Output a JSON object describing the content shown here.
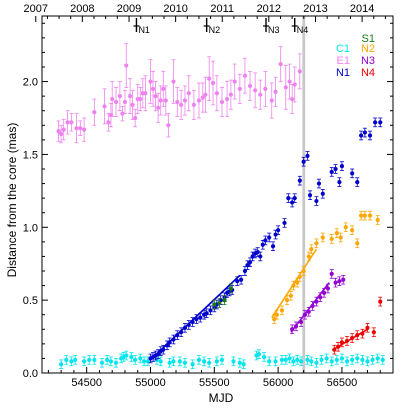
{
  "chart_data": {
    "type": "scatter",
    "xlabel": "MJD",
    "ylabel": "Distance from the core (mas)",
    "xlim": [
      54150,
      56900
    ],
    "ylim": [
      0.0,
      2.45
    ],
    "x_ticks": [
      "54500",
      "55000",
      "55500",
      "56000",
      "56500"
    ],
    "x_tick_values": [
      54500,
      55000,
      55500,
      56000,
      56500
    ],
    "y_ticks": [
      "0.0",
      "0.5",
      "1.0",
      "1.5",
      "2.0"
    ],
    "y_tick_values": [
      0.0,
      0.5,
      1.0,
      1.5,
      2.0
    ],
    "top_axis_ticks": [
      "2007",
      "2008",
      "2009",
      "2010",
      "2011",
      "2012",
      "2013",
      "2014"
    ],
    "top_axis_values": [
      54101,
      54466,
      54832,
      55197,
      55562,
      55927,
      56293,
      56658
    ],
    "grid": false,
    "shaded_band": {
      "x": [
        56190,
        56212
      ],
      "color": "#c8c8c8"
    },
    "markers": [
      {
        "label": "N1",
        "x": 54890
      },
      {
        "label": "N2",
        "x": 55440
      },
      {
        "label": "N3",
        "x": 55905
      },
      {
        "label": "N4",
        "x": 56130
      }
    ],
    "legend": {
      "placement": "top-right",
      "entries": [
        {
          "label": "S1",
          "color": "#1a7a1a"
        },
        {
          "label": "C1",
          "color": "#00e5ee"
        },
        {
          "label": "N2",
          "color": "#ffa500"
        },
        {
          "label": "E1",
          "color": "#ee82ee"
        },
        {
          "label": "N3",
          "color": "#9400d3"
        },
        {
          "label": "N1",
          "color": "#0000cd"
        },
        {
          "label": "N4",
          "color": "#ee0000"
        }
      ]
    },
    "series": [
      {
        "name": "E1",
        "color": "#ee82ee",
        "points": [
          [
            54280,
            1.66,
            0.07
          ],
          [
            54300,
            1.64,
            0.06
          ],
          [
            54320,
            1.67,
            0.07
          ],
          [
            54350,
            1.72,
            0.08
          ],
          [
            54380,
            1.72,
            0.06
          ],
          [
            54420,
            1.68,
            0.1
          ],
          [
            54450,
            1.68,
            0.05
          ],
          [
            54480,
            1.67,
            0.08
          ],
          [
            54560,
            1.79,
            0.09
          ],
          [
            54640,
            1.83,
            0.12
          ],
          [
            54670,
            1.72,
            0.06
          ],
          [
            54690,
            1.77,
            0.08
          ],
          [
            54700,
            1.88,
            0.12
          ],
          [
            54730,
            1.86,
            0.1
          ],
          [
            54760,
            1.9,
            0.1
          ],
          [
            54780,
            1.78,
            0.05
          ],
          [
            54800,
            1.86,
            0.08
          ],
          [
            54810,
            2.11,
            0.15
          ],
          [
            54840,
            1.9,
            0.12
          ],
          [
            54860,
            1.84,
            0.1
          ],
          [
            54880,
            1.75,
            0.06
          ],
          [
            54900,
            1.88,
            0.1
          ],
          [
            54920,
            1.88,
            0.08
          ],
          [
            54940,
            1.92,
            0.1
          ],
          [
            54960,
            1.92,
            0.12
          ],
          [
            55000,
            2.0,
            0.15
          ],
          [
            55020,
            1.95,
            0.12
          ],
          [
            55040,
            1.9,
            0.1
          ],
          [
            55060,
            1.82,
            0.1
          ],
          [
            55080,
            1.87,
            0.1
          ],
          [
            55100,
            1.95,
            0.12
          ],
          [
            55120,
            1.87,
            0.1
          ],
          [
            55140,
            1.7,
            0.08
          ],
          [
            55180,
            2.0,
            0.15
          ],
          [
            55210,
            1.86,
            0.1
          ],
          [
            55240,
            1.84,
            0.1
          ],
          [
            55270,
            1.87,
            0.1
          ],
          [
            55300,
            1.92,
            0.12
          ],
          [
            55340,
            1.84,
            0.1
          ],
          [
            55380,
            1.87,
            0.12
          ],
          [
            55410,
            1.89,
            0.1
          ],
          [
            55430,
            1.91,
            0.12
          ],
          [
            55460,
            2.02,
            0.15
          ],
          [
            55490,
            1.99,
            0.15
          ],
          [
            55520,
            1.92,
            0.12
          ],
          [
            55560,
            1.86,
            0.1
          ],
          [
            55600,
            1.88,
            0.12
          ],
          [
            55630,
            1.91,
            0.1
          ],
          [
            55660,
            2.0,
            0.12
          ],
          [
            55700,
            1.95,
            0.1
          ],
          [
            55740,
            2.04,
            0.12
          ],
          [
            55780,
            1.97,
            0.1
          ],
          [
            55820,
            1.94,
            0.12
          ],
          [
            55860,
            1.91,
            0.1
          ],
          [
            55900,
            1.95,
            0.12
          ],
          [
            55950,
            1.87,
            0.12
          ],
          [
            55980,
            1.93,
            0.1
          ],
          [
            56020,
            2.12,
            0.12
          ],
          [
            56060,
            1.96,
            0.15
          ],
          [
            56090,
            2.0,
            0.12
          ],
          [
            56110,
            1.88,
            0.1
          ],
          [
            56130,
            1.98,
            0.12
          ],
          [
            56170,
            2.07,
            0.12
          ]
        ]
      },
      {
        "name": "C1",
        "color": "#00e5ee",
        "points": [
          [
            54300,
            0.06
          ],
          [
            54340,
            0.09
          ],
          [
            54380,
            0.08
          ],
          [
            54410,
            0.09
          ],
          [
            54480,
            0.08
          ],
          [
            54520,
            0.09
          ],
          [
            54560,
            0.09
          ],
          [
            54620,
            0.07
          ],
          [
            54660,
            0.09
          ],
          [
            54690,
            0.08
          ],
          [
            54730,
            0.07
          ],
          [
            54770,
            0.1
          ],
          [
            54790,
            0.11
          ],
          [
            54810,
            0.12
          ],
          [
            54850,
            0.11
          ],
          [
            54880,
            0.09
          ],
          [
            54920,
            0.1
          ],
          [
            54950,
            0.08
          ],
          [
            54980,
            0.08
          ],
          [
            55050,
            0.09
          ],
          [
            55080,
            0.08
          ],
          [
            55150,
            0.07
          ],
          [
            55180,
            0.08
          ],
          [
            55230,
            0.08
          ],
          [
            55270,
            0.07
          ],
          [
            55330,
            0.06
          ],
          [
            55380,
            0.09
          ],
          [
            55420,
            0.08
          ],
          [
            55460,
            0.07
          ],
          [
            55520,
            0.08
          ],
          [
            55560,
            0.09
          ],
          [
            55650,
            0.08
          ],
          [
            55700,
            0.07
          ],
          [
            55730,
            0.06
          ],
          [
            55830,
            0.12
          ],
          [
            55850,
            0.13
          ],
          [
            55890,
            0.11
          ],
          [
            55930,
            0.08
          ],
          [
            55980,
            0.08
          ],
          [
            56030,
            0.09
          ],
          [
            56060,
            0.09
          ],
          [
            56090,
            0.1
          ],
          [
            56120,
            0.08
          ],
          [
            56150,
            0.09
          ],
          [
            56180,
            0.08
          ],
          [
            56230,
            0.09
          ],
          [
            56260,
            0.08
          ],
          [
            56300,
            0.07
          ],
          [
            56340,
            0.09
          ],
          [
            56380,
            0.1
          ],
          [
            56420,
            0.08
          ],
          [
            56460,
            0.09
          ],
          [
            56500,
            0.1
          ],
          [
            56540,
            0.08
          ],
          [
            56580,
            0.09
          ],
          [
            56620,
            0.1
          ],
          [
            56660,
            0.09
          ],
          [
            56700,
            0.08
          ],
          [
            56740,
            0.09
          ],
          [
            56780,
            0.1
          ],
          [
            56820,
            0.09
          ]
        ]
      },
      {
        "name": "N1",
        "color": "#0000cd",
        "fit": [
          [
            55000,
            0.09
          ],
          [
            55700,
            0.67
          ]
        ],
        "points": [
          [
            55000,
            0.1
          ],
          [
            55020,
            0.11
          ],
          [
            55040,
            0.12
          ],
          [
            55060,
            0.13
          ],
          [
            55080,
            0.15
          ],
          [
            55100,
            0.16
          ],
          [
            55130,
            0.19
          ],
          [
            55150,
            0.21
          ],
          [
            55180,
            0.23
          ],
          [
            55210,
            0.26
          ],
          [
            55240,
            0.28
          ],
          [
            55270,
            0.31
          ],
          [
            55300,
            0.33
          ],
          [
            55330,
            0.35
          ],
          [
            55360,
            0.37
          ],
          [
            55390,
            0.38
          ],
          [
            55420,
            0.4
          ],
          [
            55440,
            0.41
          ],
          [
            55470,
            0.43
          ],
          [
            55500,
            0.45
          ],
          [
            55520,
            0.47
          ],
          [
            55550,
            0.5
          ],
          [
            55580,
            0.52
          ],
          [
            55600,
            0.55
          ],
          [
            55620,
            0.56
          ],
          [
            55640,
            0.57
          ],
          [
            55680,
            0.63
          ],
          [
            55710,
            0.64
          ],
          [
            55740,
            0.7
          ],
          [
            55760,
            0.74
          ],
          [
            55780,
            0.76
          ],
          [
            55800,
            0.8
          ],
          [
            55820,
            0.82
          ],
          [
            55840,
            0.83
          ],
          [
            55860,
            0.8
          ],
          [
            55880,
            0.88
          ],
          [
            55900,
            0.91
          ],
          [
            55930,
            0.93
          ],
          [
            55960,
            0.87
          ],
          [
            55980,
            0.95
          ],
          [
            56000,
            0.98
          ],
          [
            56050,
            1.03
          ],
          [
            56080,
            1.2
          ],
          [
            56110,
            1.17
          ],
          [
            56130,
            1.2
          ],
          [
            56170,
            1.32
          ],
          [
            56200,
            1.45
          ],
          [
            56230,
            1.49
          ],
          [
            56250,
            1.22
          ],
          [
            56300,
            1.18
          ],
          [
            56320,
            1.3
          ],
          [
            56350,
            1.23
          ],
          [
            56420,
            1.38
          ],
          [
            56450,
            1.4
          ],
          [
            56480,
            1.31
          ],
          [
            56500,
            1.42
          ],
          [
            56580,
            1.37
          ],
          [
            56620,
            1.31
          ],
          [
            56650,
            1.63
          ],
          [
            56680,
            1.65
          ],
          [
            56720,
            1.63
          ],
          [
            56760,
            1.72
          ],
          [
            56800,
            1.72
          ]
        ]
      },
      {
        "name": "S1",
        "color": "#1a7a1a",
        "points": [
          [
            55500,
            0.47
          ],
          [
            55540,
            0.48
          ],
          [
            55580,
            0.5
          ],
          [
            55630,
            0.58
          ]
        ]
      },
      {
        "name": "N2",
        "color": "#ffa500",
        "fit": [
          [
            55950,
            0.38
          ],
          [
            56300,
            0.85
          ]
        ],
        "points": [
          [
            55970,
            0.37
          ],
          [
            55990,
            0.4
          ],
          [
            56030,
            0.43
          ],
          [
            56070,
            0.5
          ],
          [
            56100,
            0.53
          ],
          [
            56120,
            0.6
          ],
          [
            56150,
            0.62
          ],
          [
            56170,
            0.66
          ],
          [
            56200,
            0.7
          ],
          [
            56240,
            0.8
          ],
          [
            56260,
            0.85
          ],
          [
            56300,
            0.89
          ],
          [
            56350,
            0.93
          ],
          [
            56420,
            0.92
          ],
          [
            56460,
            0.96
          ],
          [
            56490,
            0.93
          ],
          [
            56530,
            1.0
          ],
          [
            56580,
            0.98
          ],
          [
            56620,
            0.89
          ],
          [
            56650,
            1.08
          ],
          [
            56680,
            1.08
          ],
          [
            56720,
            1.08
          ],
          [
            56780,
            1.05
          ]
        ]
      },
      {
        "name": "N3",
        "color": "#9400d3",
        "fit": [
          [
            56100,
            0.28
          ],
          [
            56400,
            0.62
          ]
        ],
        "points": [
          [
            56110,
            0.3
          ],
          [
            56140,
            0.32
          ],
          [
            56180,
            0.35
          ],
          [
            56210,
            0.4
          ],
          [
            56240,
            0.42
          ],
          [
            56270,
            0.46
          ],
          [
            56300,
            0.49
          ],
          [
            56330,
            0.52
          ],
          [
            56360,
            0.55
          ],
          [
            56390,
            0.58
          ],
          [
            56420,
            0.68
          ],
          [
            56450,
            0.62
          ],
          [
            56480,
            0.63
          ],
          [
            56510,
            0.64
          ]
        ]
      },
      {
        "name": "N4",
        "color": "#ee0000",
        "fit": [
          [
            56430,
            0.16
          ],
          [
            56700,
            0.3
          ]
        ],
        "points": [
          [
            56440,
            0.16
          ],
          [
            56470,
            0.18
          ],
          [
            56500,
            0.21
          ],
          [
            56540,
            0.22
          ],
          [
            56580,
            0.24
          ],
          [
            56620,
            0.26
          ],
          [
            56660,
            0.27
          ],
          [
            56700,
            0.31
          ],
          [
            56750,
            0.28
          ],
          [
            56800,
            0.49
          ]
        ]
      }
    ]
  }
}
